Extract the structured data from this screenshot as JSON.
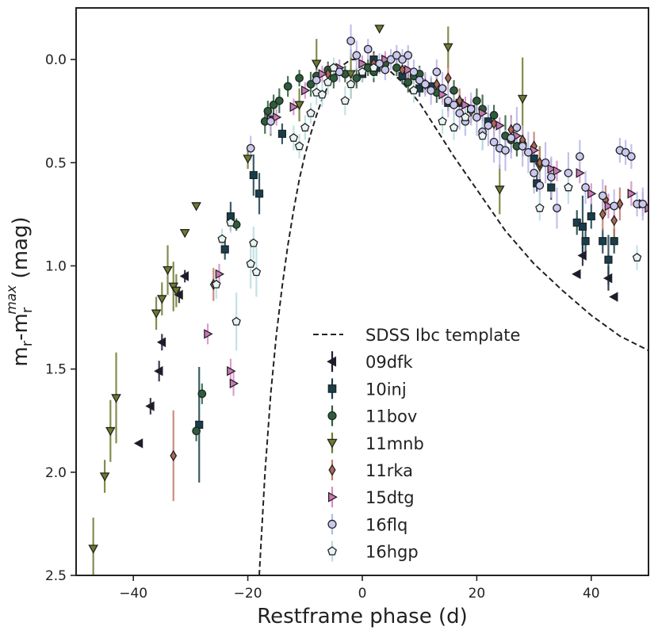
{
  "chart_data": {
    "type": "scatter",
    "xlabel": "Restframe phase (d)",
    "ylabel_main": "m",
    "ylabel_sub1": "r",
    "ylabel_mid": "-m",
    "ylabel_sub2": "r",
    "ylabel_sup": "max",
    "ylabel_tail": " (mag)",
    "xlim": [
      -50,
      50
    ],
    "ylim": [
      2.5,
      -0.25
    ],
    "y_inverted": true,
    "xticks": [
      -40,
      -20,
      0,
      20,
      40
    ],
    "xtick_labels": [
      "−40",
      "−20",
      "0",
      "20",
      "40"
    ],
    "yticks": [
      0.0,
      0.5,
      1.0,
      1.5,
      2.0,
      2.5
    ],
    "ytick_labels": [
      "0.0",
      "0.5",
      "1.0",
      "1.5",
      "2.0",
      "2.5"
    ],
    "grid": false,
    "legend_placement": "lower-center",
    "template": {
      "name": "SDSS Ibc template",
      "style": "dashed",
      "color": "#222222",
      "x": [
        -18,
        -17,
        -16,
        -15,
        -14,
        -13,
        -12,
        -11,
        -10,
        -9,
        -8,
        -7,
        -6,
        -5,
        -4,
        -3,
        -2,
        -1,
        0,
        1,
        2,
        3,
        5,
        7,
        10,
        13,
        16,
        20,
        25,
        30,
        35,
        40,
        45,
        50
      ],
      "y": [
        2.5,
        2.0,
        1.62,
        1.33,
        1.1,
        0.9,
        0.73,
        0.58,
        0.46,
        0.36,
        0.27,
        0.19,
        0.13,
        0.08,
        0.04,
        0.02,
        0.0,
        0.0,
        0.01,
        0.02,
        0.03,
        0.02,
        0.06,
        0.11,
        0.21,
        0.34,
        0.47,
        0.63,
        0.83,
        0.99,
        1.12,
        1.24,
        1.34,
        1.41
      ]
    },
    "series": [
      {
        "name": "09dfk",
        "marker": "triangle-left",
        "color": "#1c1b33",
        "errcolor": "#1c1b33",
        "x": [
          -39,
          -37,
          -35.5,
          -35,
          -32,
          -31,
          37.5,
          38.5,
          43,
          44
        ],
        "y": [
          1.86,
          1.68,
          1.51,
          1.37,
          1.14,
          1.05,
          1.04,
          0.95,
          1.06,
          1.15
        ],
        "err": [
          0,
          0.04,
          0.05,
          0.04,
          0.04,
          0.03,
          0,
          0.05,
          0.06,
          0
        ]
      },
      {
        "name": "10inj",
        "marker": "square",
        "color": "#163f4d",
        "errcolor": "#163f4d",
        "x": [
          -28.5,
          -24,
          -23,
          -19,
          -18,
          -14,
          0,
          2,
          2.5,
          7,
          10,
          12,
          15,
          17,
          19,
          22,
          30,
          30.5,
          33,
          37.5,
          38.5,
          39,
          40,
          42,
          43,
          44
        ],
        "y": [
          1.77,
          0.92,
          0.76,
          0.56,
          0.65,
          0.36,
          0.07,
          0.0,
          0.04,
          0.08,
          0.14,
          0.13,
          0.21,
          0.21,
          0.24,
          0.3,
          0.48,
          0.6,
          0.62,
          0.79,
          0.81,
          0.88,
          0.76,
          0.88,
          0.97,
          0.88
        ],
        "err": [
          0.28,
          0.05,
          0.07,
          0.1,
          0.1,
          0.05,
          0.04,
          0.04,
          0.04,
          0.04,
          0.04,
          0.04,
          0.04,
          0.04,
          0.04,
          0.04,
          0.04,
          0.04,
          0.06,
          0.06,
          0.15,
          0.06,
          0.06,
          0.06,
          0.12,
          0.06
        ]
      },
      {
        "name": "11bov",
        "marker": "circle",
        "color": "#2b5e3a",
        "errcolor": "#2b5e3a",
        "x": [
          -29,
          -28,
          -22,
          -17,
          -16.5,
          -15.5,
          -14.5,
          -13,
          -11,
          -9,
          -8,
          -6,
          -5,
          -3,
          -1,
          1,
          2,
          4,
          6,
          8,
          9,
          10,
          13,
          16,
          20,
          21,
          23,
          25,
          26,
          27,
          28
        ],
        "y": [
          1.8,
          1.62,
          0.8,
          0.3,
          0.25,
          0.22,
          0.2,
          0.13,
          0.09,
          0.12,
          0.08,
          0.05,
          0.09,
          0.07,
          0.09,
          0.04,
          0.06,
          0.02,
          0.04,
          0.11,
          0.08,
          0.07,
          0.16,
          0.15,
          0.2,
          0.24,
          0.27,
          0.37,
          0.39,
          0.42,
          0.41
        ],
        "err": [
          0.05,
          0.05,
          0.03,
          0.06,
          0.05,
          0.05,
          0.06,
          0.05,
          0.04,
          0.06,
          0.05,
          0.04,
          0.05,
          0.04,
          0.05,
          0.04,
          0.05,
          0.04,
          0.04,
          0.05,
          0.04,
          0.04,
          0.05,
          0.05,
          0.06,
          0.07,
          0.05,
          0.1,
          0.06,
          0.05,
          0.06
        ]
      },
      {
        "name": "11mnb",
        "marker": "triangle-down",
        "color": "#6e7a2d",
        "errcolor": "#6e7a2d",
        "x": [
          -47,
          -45,
          -44,
          -43,
          -36,
          -35,
          -34,
          -33,
          -32.5,
          -29,
          -31,
          -20,
          -16,
          -11,
          -8,
          -2,
          3,
          15,
          24,
          28,
          31
        ],
        "y": [
          2.37,
          2.02,
          1.8,
          1.64,
          1.23,
          1.16,
          1.02,
          1.1,
          1.12,
          0.71,
          0.84,
          0.48,
          0.29,
          0.22,
          0.02,
          0.07,
          -0.15,
          -0.06,
          0.63,
          0.19,
          0.52
        ],
        "err": [
          0.15,
          0.08,
          0.15,
          0.22,
          0.08,
          0.08,
          0.12,
          0.12,
          0.08,
          0,
          0,
          0.05,
          0.08,
          0.08,
          0.12,
          0.12,
          0,
          0.1,
          0.12,
          0.2,
          0.1
        ]
      },
      {
        "name": "11rka",
        "marker": "diamond",
        "color": "#b06656",
        "errcolor": "#c47a68",
        "x": [
          -33,
          -26,
          -6,
          2,
          7,
          11,
          13,
          15,
          17,
          19,
          23,
          26,
          28,
          30,
          31,
          42,
          42.5,
          44,
          45
        ],
        "y": [
          1.92,
          1.09,
          0.07,
          0.02,
          0.05,
          0.12,
          0.12,
          0.09,
          0.2,
          0.25,
          0.31,
          0.34,
          0.39,
          0.42,
          0.5,
          0.75,
          0.68,
          0.78,
          0.7
        ],
        "err": [
          0.22,
          0.08,
          0.05,
          0.05,
          0.05,
          0.05,
          0.06,
          0.06,
          0.06,
          0.06,
          0.06,
          0.07,
          0.07,
          0.07,
          0.07,
          0.08,
          0.07,
          0.08,
          0.08
        ]
      },
      {
        "name": "15dtg",
        "marker": "triangle-right",
        "color": "#c978b8",
        "errcolor": "#d98ac8",
        "x": [
          -27,
          -25,
          -23,
          -22.5,
          -16,
          -15,
          -12,
          -10,
          -7,
          -4,
          0,
          4,
          8,
          11,
          14,
          18,
          21,
          24,
          27,
          30,
          33,
          34,
          38,
          40,
          43,
          47,
          49,
          50
        ],
        "y": [
          1.33,
          1.04,
          1.51,
          1.57,
          0.29,
          0.28,
          0.23,
          0.15,
          0.07,
          0.04,
          0.02,
          0.0,
          0.05,
          0.12,
          0.17,
          0.22,
          0.26,
          0.32,
          0.37,
          0.44,
          0.53,
          0.54,
          0.55,
          0.65,
          0.71,
          0.65,
          0.7,
          0.72
        ],
        "err": [
          0.05,
          0.05,
          0.06,
          0.06,
          0.04,
          0.04,
          0.04,
          0.04,
          0.04,
          0.04,
          0.04,
          0.04,
          0.04,
          0.04,
          0.04,
          0.04,
          0.04,
          0.04,
          0.05,
          0.05,
          0.05,
          0.05,
          0.05,
          0.05,
          0.06,
          0.06,
          0.06,
          0.06
        ]
      },
      {
        "name": "16flq",
        "marker": "circle",
        "color": "#c9c8ef",
        "errcolor": "#b9b6ea",
        "x": [
          -19.5,
          -16,
          -8,
          -4,
          -2,
          -1,
          1,
          3,
          4,
          5,
          6,
          7,
          8,
          9,
          10,
          11,
          12,
          13,
          14,
          15,
          16,
          17,
          18,
          19,
          20,
          21,
          22,
          23,
          24,
          25,
          26,
          27,
          28,
          29,
          30,
          31,
          32,
          33,
          34,
          36,
          38,
          39,
          42,
          44,
          45,
          46,
          47,
          48,
          49
        ],
        "y": [
          0.43,
          0.3,
          0.1,
          0.06,
          -0.09,
          -0.02,
          -0.05,
          0.02,
          0.05,
          0.0,
          -0.02,
          0.0,
          -0.02,
          0.06,
          0.1,
          0.12,
          0.15,
          0.06,
          0.14,
          0.2,
          0.22,
          0.26,
          0.3,
          0.24,
          0.28,
          0.35,
          0.32,
          0.4,
          0.43,
          0.44,
          0.38,
          0.33,
          0.42,
          0.45,
          0.55,
          0.61,
          0.5,
          0.57,
          0.72,
          0.55,
          0.47,
          0.62,
          0.66,
          0.71,
          0.44,
          0.45,
          0.47,
          0.7,
          0.7
        ],
        "err": [
          0.06,
          0.06,
          0.05,
          0.05,
          0.08,
          0.07,
          0.05,
          0.05,
          0.05,
          0.05,
          0.05,
          0.05,
          0.05,
          0.06,
          0.06,
          0.06,
          0.07,
          0.06,
          0.08,
          0.08,
          0.08,
          0.08,
          0.07,
          0.08,
          0.09,
          0.09,
          0.1,
          0.1,
          0.1,
          0.1,
          0.1,
          0.1,
          0.1,
          0.1,
          0.1,
          0.1,
          0.1,
          0.1,
          0.1,
          0.1,
          0.08,
          0.08,
          0.08,
          0.08,
          0.06,
          0.06,
          0.06,
          0.06,
          0.08
        ]
      },
      {
        "name": "16hgp",
        "marker": "pentagon",
        "color": "#e8f4f2",
        "errcolor": "#b8dde2",
        "x": [
          -25.5,
          -24.5,
          -23,
          -22,
          -19.5,
          -19,
          -18.5,
          -12,
          -11,
          -10,
          -9,
          -8,
          -7,
          -6,
          -5,
          -3,
          -2,
          0,
          2,
          9,
          14,
          16,
          18,
          21,
          31,
          36,
          48
        ],
        "y": [
          1.09,
          0.87,
          0.79,
          1.27,
          0.99,
          0.89,
          1.03,
          0.38,
          0.42,
          0.33,
          0.26,
          0.16,
          0.17,
          0.11,
          0.04,
          0.2,
          0.12,
          0.06,
          0.04,
          0.15,
          0.3,
          0.33,
          0.28,
          0.37,
          0.72,
          0.62,
          0.96
        ],
        "err": [
          0.07,
          0.05,
          0.05,
          0.14,
          0.12,
          0.08,
          0.12,
          0.06,
          0.06,
          0.06,
          0.05,
          0.06,
          0.06,
          0.06,
          0.05,
          0.07,
          0.07,
          0.05,
          0.05,
          0.06,
          0.06,
          0.06,
          0.06,
          0.07,
          0.06,
          0.08,
          0.06
        ]
      }
    ]
  }
}
